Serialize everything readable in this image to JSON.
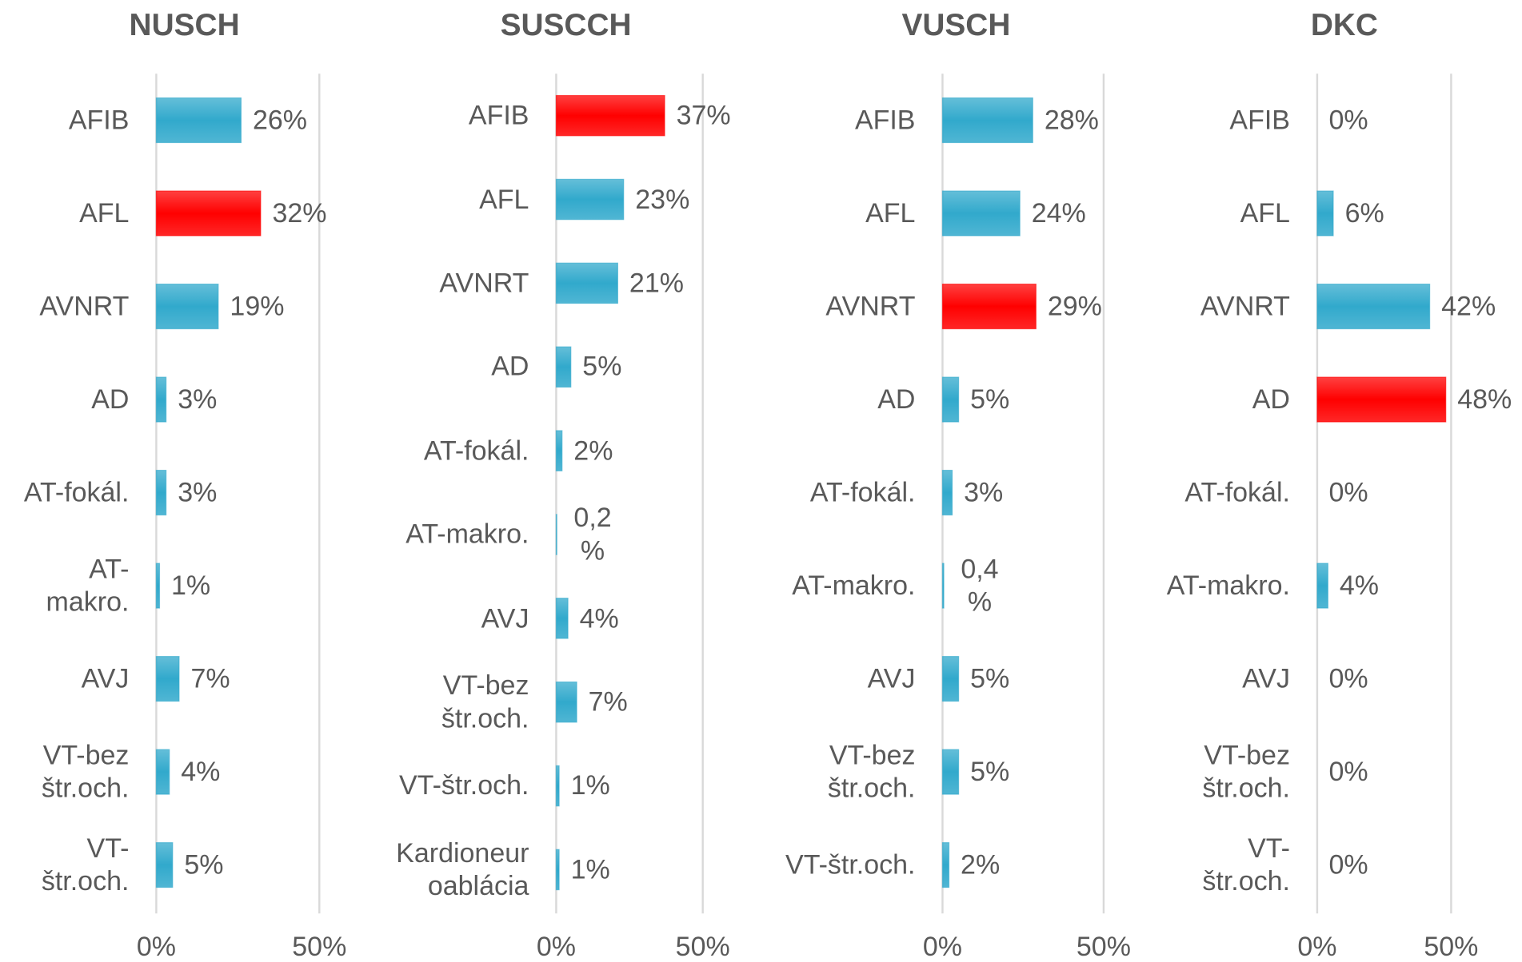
{
  "chart_data": [
    {
      "type": "hbar",
      "title": "NUSCH",
      "categories": [
        "AFIB",
        "AFL",
        "AVNRT",
        "AD",
        "AT-fokál.",
        "AT-makro.",
        "AVJ",
        "VT-bez štr.och.",
        "VT-štr.och."
      ],
      "values": [
        26,
        32,
        19,
        3,
        3,
        1,
        7,
        4,
        5
      ],
      "value_labels": [
        "26%",
        "32%",
        "19%",
        "3%",
        "3%",
        "1%",
        "7%",
        "4%",
        "5%"
      ],
      "colors": [
        "#31a9cc",
        "#ff0000",
        "#31a9cc",
        "#31a9cc",
        "#31a9cc",
        "#31a9cc",
        "#31a9cc",
        "#31a9cc",
        "#31a9cc"
      ],
      "xlim": [
        0,
        50
      ],
      "xticks": [
        {
          "value": 0,
          "label": "0%"
        },
        {
          "value": 50,
          "label": "50%"
        }
      ],
      "grid": true
    },
    {
      "type": "hbar",
      "title": "SUSCCH",
      "categories": [
        "AFIB",
        "AFL",
        "AVNRT",
        "AD",
        "AT-fokál.",
        "AT-makro.",
        "AVJ",
        "VT-bez štr.och.",
        "VT-štr.och.",
        "Kardioneuroablácia"
      ],
      "values": [
        37,
        23,
        21,
        5,
        2,
        0.2,
        4,
        7,
        1,
        1
      ],
      "value_labels": [
        "37%",
        "23%",
        "21%",
        "5%",
        "2%",
        "0,2 %",
        "4%",
        "7%",
        "1%",
        "1%"
      ],
      "colors": [
        "#ff0000",
        "#31a9cc",
        "#31a9cc",
        "#31a9cc",
        "#31a9cc",
        "#31a9cc",
        "#31a9cc",
        "#31a9cc",
        "#31a9cc",
        "#31a9cc"
      ],
      "xlim": [
        0,
        50
      ],
      "xticks": [
        {
          "value": 0,
          "label": "0%"
        },
        {
          "value": 50,
          "label": "50%"
        }
      ],
      "grid": true
    },
    {
      "type": "hbar",
      "title": "VUSCH",
      "categories": [
        "AFIB",
        "AFL",
        "AVNRT",
        "AD",
        "AT-fokál.",
        "AT-makro.",
        "AVJ",
        "VT-bez štr.och.",
        "VT-štr.och."
      ],
      "values": [
        28,
        24,
        29,
        5,
        3,
        0.4,
        5,
        5,
        2
      ],
      "value_labels": [
        "28%",
        "24%",
        "29%",
        "5%",
        "3%",
        "0,4 %",
        "5%",
        "5%",
        "2%"
      ],
      "colors": [
        "#31a9cc",
        "#31a9cc",
        "#ff0000",
        "#31a9cc",
        "#31a9cc",
        "#31a9cc",
        "#31a9cc",
        "#31a9cc",
        "#31a9cc"
      ],
      "xlim": [
        0,
        50
      ],
      "xticks": [
        {
          "value": 0,
          "label": "0%"
        },
        {
          "value": 50,
          "label": "50%"
        }
      ],
      "grid": true
    },
    {
      "type": "hbar",
      "title": "DKC",
      "categories": [
        "AFIB",
        "AFL",
        "AVNRT",
        "AD",
        "AT-fokál.",
        "AT-makro.",
        "AVJ",
        "VT-bez štr.och.",
        "VT-štr.och."
      ],
      "values": [
        0,
        6,
        42,
        48,
        0,
        4,
        0,
        0,
        0
      ],
      "value_labels": [
        "0%",
        "6%",
        "42%",
        "48%",
        "0%",
        "4%",
        "0%",
        "0%",
        "0%"
      ],
      "colors": [
        "#31a9cc",
        "#31a9cc",
        "#31a9cc",
        "#ff0000",
        "#31a9cc",
        "#31a9cc",
        "#31a9cc",
        "#31a9cc",
        "#31a9cc"
      ],
      "xlim": [
        0,
        50
      ],
      "xticks": [
        {
          "value": 0,
          "label": "0%"
        },
        {
          "value": 50,
          "label": "50%"
        }
      ],
      "grid": true
    }
  ]
}
